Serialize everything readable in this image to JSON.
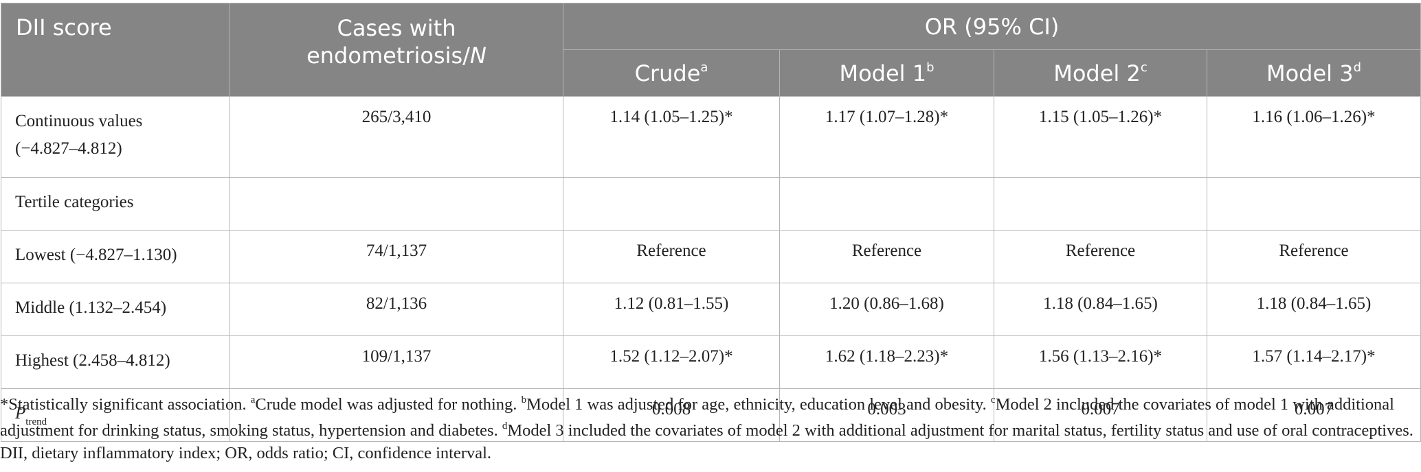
{
  "header": {
    "col_dii": "DII score",
    "col_cases_line1": "Cases with",
    "col_cases_line2": "endometriosis/",
    "col_cases_italic": "N",
    "group_or": "OR (95% CI)",
    "models": [
      {
        "label": "Crude",
        "sup": "a"
      },
      {
        "label": "Model 1",
        "sup": "b"
      },
      {
        "label": "Model 2",
        "sup": "c"
      },
      {
        "label": "Model 3",
        "sup": "d"
      }
    ]
  },
  "rows": [
    {
      "label_line1": "Continuous values",
      "label_line2": "(−4.827–4.812)",
      "cases": "265/3,410",
      "values": [
        "1.14 (1.05–1.25)*",
        "1.17 (1.07–1.28)*",
        "1.15 (1.05–1.26)*",
        "1.16 (1.06–1.26)*"
      ]
    },
    {
      "label": "Tertile categories",
      "cases": "",
      "values": [
        "",
        "",
        "",
        ""
      ]
    },
    {
      "label": "Lowest (−4.827–1.130)",
      "cases": "74/1,137",
      "values": [
        "Reference",
        "Reference",
        "Reference",
        "Reference"
      ]
    },
    {
      "label": "Middle (1.132–2.454)",
      "cases": "82/1,136",
      "values": [
        "1.12 (0.81–1.55)",
        "1.20 (0.86–1.68)",
        "1.18 (0.84–1.65)",
        "1.18 (0.84–1.65)"
      ]
    },
    {
      "label": "Highest (2.458–4.812)",
      "cases": "109/1,137",
      "values": [
        "1.52 (1.12–2.07)*",
        "1.62 (1.18–2.23)*",
        "1.56 (1.13–2.16)*",
        "1.57 (1.14–2.17)*"
      ]
    },
    {
      "label_main": "P",
      "label_sub": "trend",
      "cases": "",
      "values": [
        "0.008",
        "0.003",
        "0.007",
        "0.007"
      ]
    }
  ],
  "notes": {
    "n0": "*Statistically significant association. ",
    "s1": "a",
    "n1": "Crude model was adjusted for nothing. ",
    "s2": "b",
    "n2": "Model 1 was adjusted for age, ethnicity, education level and obesity. ",
    "s3": "c",
    "n3": "Model 2 included the covariates of model 1 with additional adjustment for drinking status, smoking status, hypertension and diabetes. ",
    "s4": "d",
    "n4": "Model 3 included the covariates of model 2 with additional adjustment for marital status, fertility status and use of oral contraceptives. DII, dietary inflammatory index; OR, odds ratio; CI, confidence interval."
  }
}
